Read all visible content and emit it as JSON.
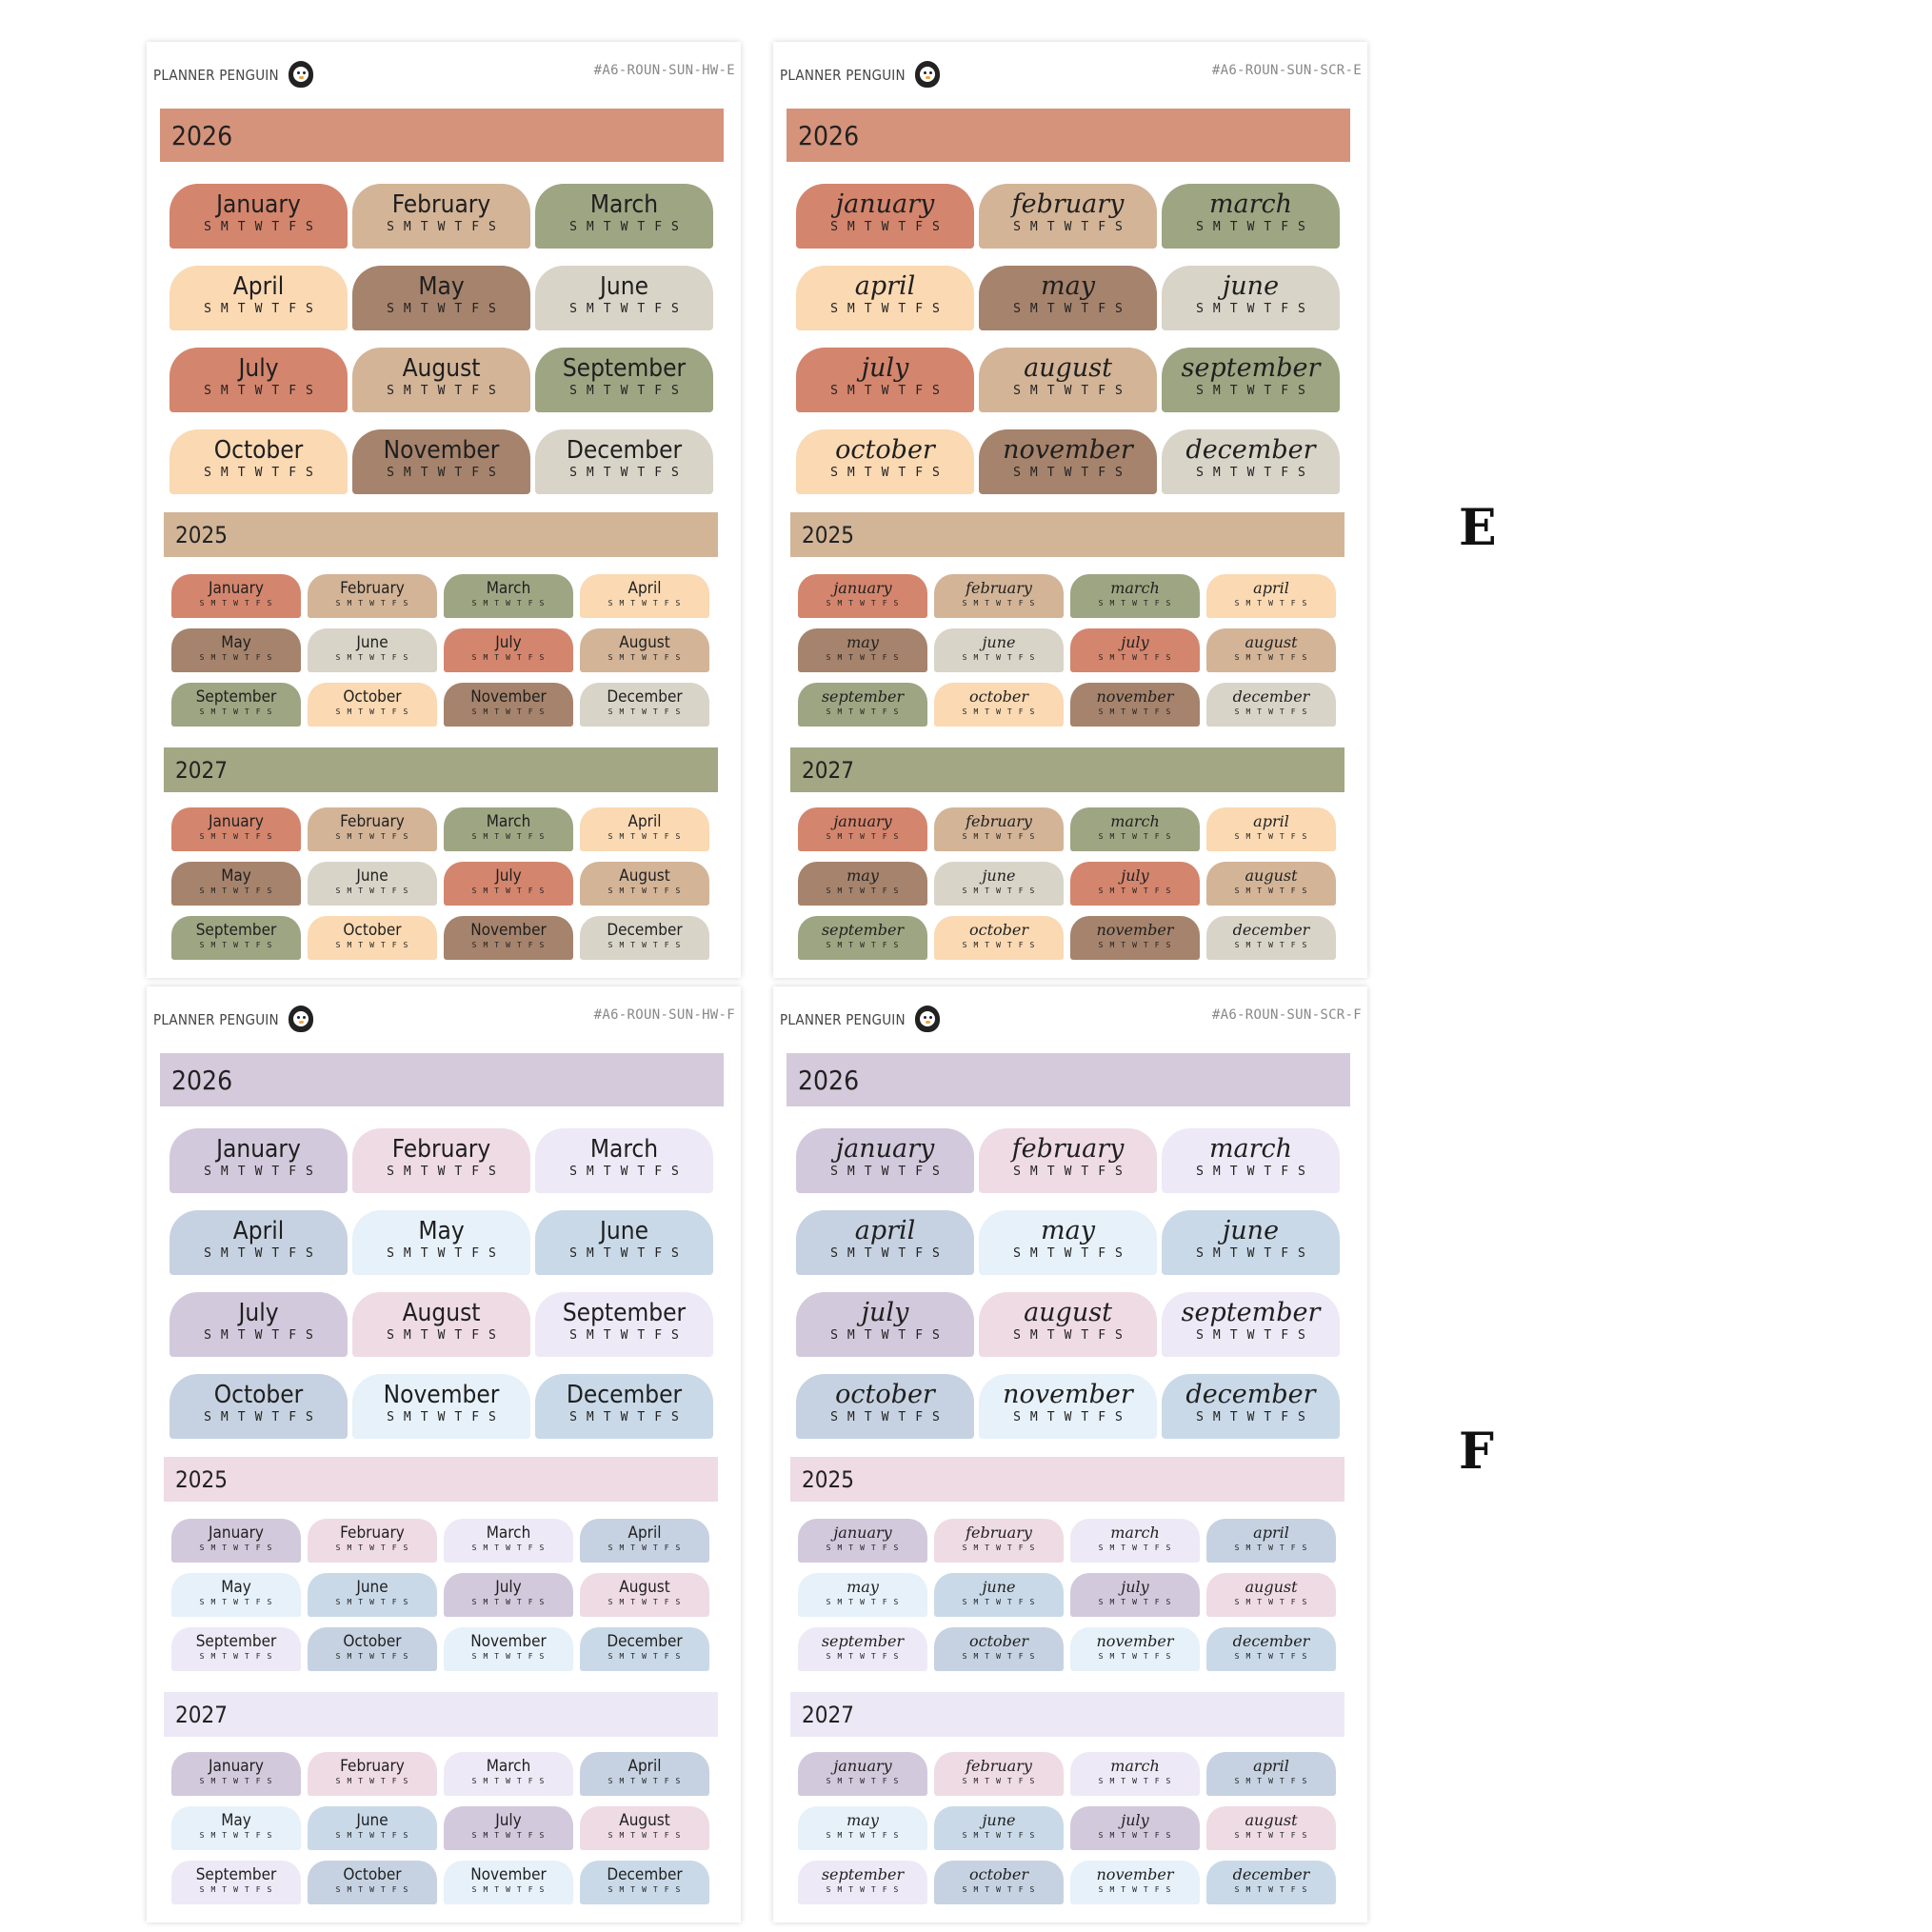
{
  "brand": "PLANNER PENGUIN",
  "labels": [
    "E",
    "F"
  ],
  "weekdays": "SMTWTFS",
  "years": [
    "2026",
    "2025",
    "2027"
  ],
  "sheets": [
    {
      "code": "#A6-ROUN-SUN-HW-E",
      "style": "hw",
      "colors": {
        "bar2026": "#d5937b",
        "bar2025": "#d2b597",
        "bar2027": "#a3a783"
      },
      "months": [
        "January",
        "February",
        "March",
        "April",
        "May",
        "June",
        "July",
        "August",
        "September",
        "October",
        "November",
        "December"
      ],
      "big_colors": [
        "#d4856d",
        "#d3b497",
        "#9ea582",
        "#fad9b3",
        "#a6836c",
        "#d9d4c8",
        "#d4856d",
        "#d3b497",
        "#9ea582",
        "#fad9b3",
        "#a6836c",
        "#d9d4c8"
      ],
      "small_colors": [
        "#d4856d",
        "#d3b497",
        "#9ea582",
        "#fad9b3",
        "#a6836c",
        "#d9d4c8",
        "#d4856d",
        "#d3b497",
        "#9ea582",
        "#fad9b3",
        "#a6836c",
        "#d9d4c8"
      ]
    },
    {
      "code": "#A6-ROUN-SUN-SCR-E",
      "style": "scr",
      "colors": {
        "bar2026": "#d5937b",
        "bar2025": "#d2b597",
        "bar2027": "#a3a783"
      },
      "months": [
        "january",
        "february",
        "march",
        "april",
        "may",
        "june",
        "july",
        "august",
        "september",
        "october",
        "november",
        "december"
      ],
      "big_colors": [
        "#d4856d",
        "#d3b497",
        "#9ea582",
        "#fad9b3",
        "#a6836c",
        "#d9d4c8",
        "#d4856d",
        "#d3b497",
        "#9ea582",
        "#fad9b3",
        "#a6836c",
        "#d9d4c8"
      ],
      "small_colors": [
        "#d4856d",
        "#d3b497",
        "#9ea582",
        "#fad9b3",
        "#a6836c",
        "#d9d4c8",
        "#d4856d",
        "#d3b497",
        "#9ea582",
        "#fad9b3",
        "#a6836c",
        "#d9d4c8"
      ]
    },
    {
      "code": "#A6-ROUN-SUN-HW-F",
      "style": "hw",
      "colors": {
        "bar2026": "#d5cadc",
        "bar2025": "#efdbe3",
        "bar2027": "#ece8f5"
      },
      "months": [
        "January",
        "February",
        "March",
        "April",
        "May",
        "June",
        "July",
        "August",
        "September",
        "October",
        "November",
        "December"
      ],
      "big_colors": [
        "#d3c9dc",
        "#efdbe4",
        "#eee9f6",
        "#c6d2e1",
        "#e6f1fa",
        "#c9d9e8",
        "#d3c9dc",
        "#efdbe4",
        "#eee9f6",
        "#c6d2e1",
        "#e6f1fa",
        "#c9d9e8"
      ],
      "small_colors": [
        "#d3c9dc",
        "#efdbe4",
        "#eee9f6",
        "#c6d2e1",
        "#e6f1fa",
        "#c9d9e8",
        "#d3c9dc",
        "#efdbe4",
        "#eee9f6",
        "#c6d2e1",
        "#e6f1fa",
        "#c9d9e8"
      ]
    },
    {
      "code": "#A6-ROUN-SUN-SCR-F",
      "style": "scr",
      "colors": {
        "bar2026": "#d5cadc",
        "bar2025": "#efdbe3",
        "bar2027": "#ece8f5"
      },
      "months": [
        "january",
        "february",
        "march",
        "april",
        "may",
        "june",
        "july",
        "august",
        "september",
        "october",
        "november",
        "december"
      ],
      "big_colors": [
        "#d3c9dc",
        "#efdbe4",
        "#eee9f6",
        "#c6d2e1",
        "#e6f1fa",
        "#c9d9e8",
        "#d3c9dc",
        "#efdbe4",
        "#eee9f6",
        "#c6d2e1",
        "#e6f1fa",
        "#c9d9e8"
      ],
      "small_colors": [
        "#d3c9dc",
        "#efdbe4",
        "#eee9f6",
        "#c6d2e1",
        "#e6f1fa",
        "#c9d9e8",
        "#d3c9dc",
        "#efdbe4",
        "#eee9f6",
        "#c6d2e1",
        "#e6f1fa",
        "#c9d9e8"
      ]
    }
  ]
}
